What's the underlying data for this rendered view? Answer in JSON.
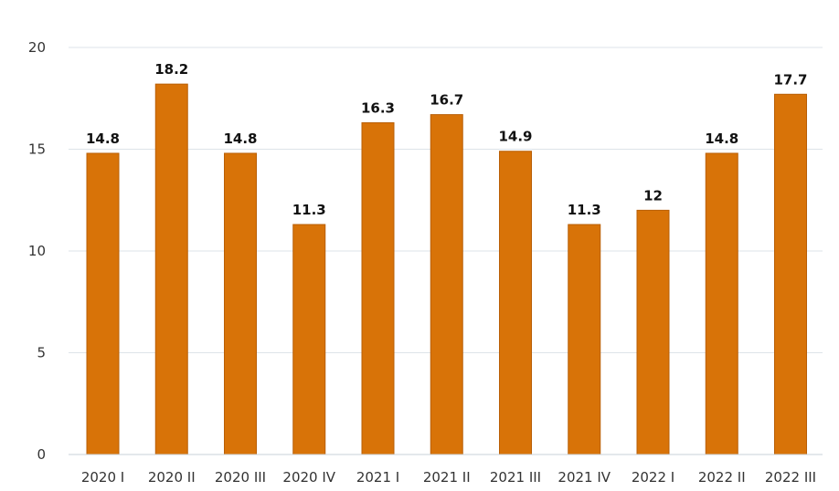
{
  "chart_data": {
    "type": "bar",
    "title": "",
    "xlabel": "",
    "ylabel": "",
    "categories": [
      "2020 I",
      "2020 II",
      "2020 III",
      "2020 IV",
      "2021 I",
      "2021 II",
      "2021 III",
      "2021 IV",
      "2022 I",
      "2022 II",
      "2022 III"
    ],
    "values": [
      14.8,
      18.2,
      14.8,
      11.3,
      16.3,
      16.7,
      14.9,
      11.3,
      12,
      14.8,
      17.7
    ],
    "data_labels": [
      "14.8",
      "18.2",
      "14.8",
      "11.3",
      "16.3",
      "16.7",
      "14.9",
      "11.3",
      "12",
      "14.8",
      "17.7"
    ],
    "ylim": [
      0,
      20
    ],
    "yticks": [
      0,
      5,
      10,
      15,
      20
    ],
    "ytick_labels": [
      "0",
      "5",
      "10",
      "15",
      "20"
    ],
    "grid": true,
    "legend": "none",
    "colors": {
      "bar": "#d87308",
      "bar_edge": "#b95f06",
      "grid": "#dde3e8"
    }
  }
}
